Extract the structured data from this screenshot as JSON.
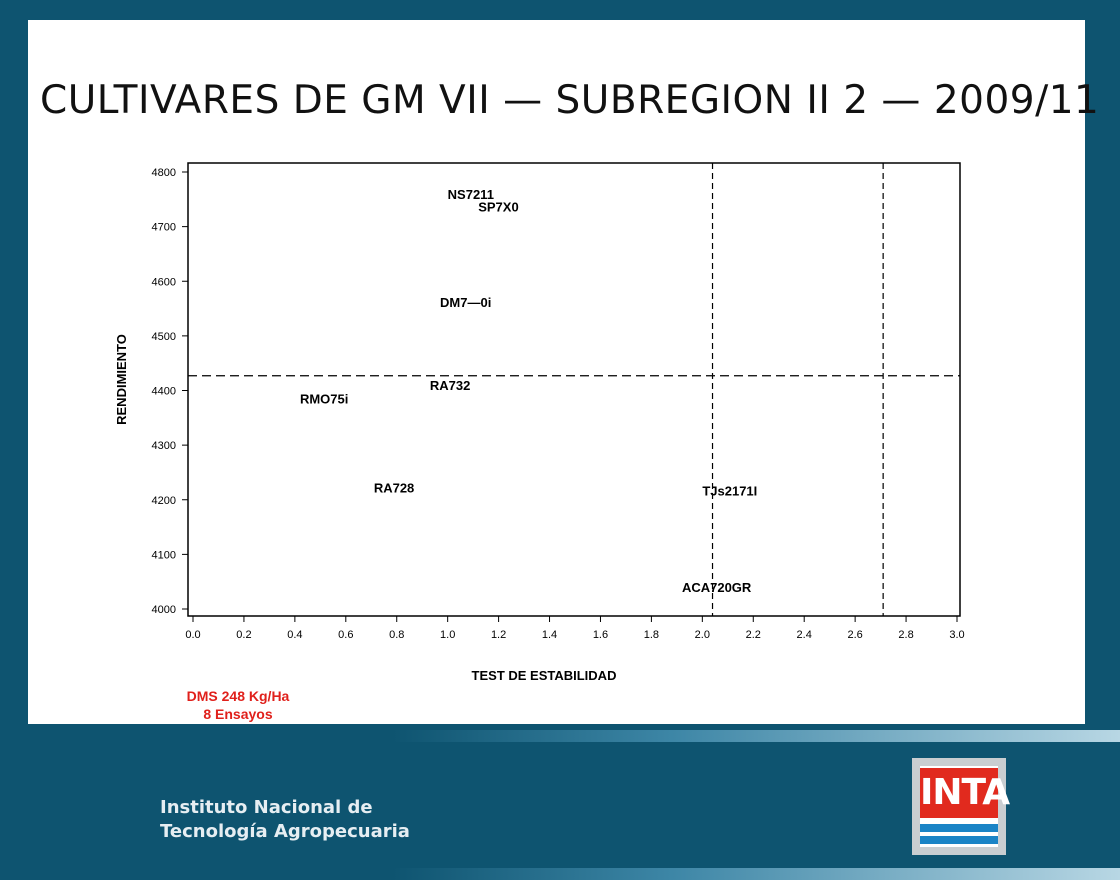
{
  "slide": {
    "title": "CULTIVARES DE GM VII — SUBREGION II 2 — 2009/11",
    "note_line1": "DMS 248 Kg/Ha",
    "note_line2": "8 Ensayos"
  },
  "footer": {
    "org_line1": "Instituto Nacional de",
    "org_line2": "Tecnología Agropecuaria",
    "logo_text": "INTA"
  },
  "colors": {
    "background": "#0e5470",
    "note": "#e0201b",
    "logo_red": "#e12a1e",
    "logo_blue": "#1a84c6"
  },
  "chart_data": {
    "type": "scatter",
    "xlabel": "TEST DE ESTABILIDAD",
    "ylabel": "RENDIMIENTO",
    "xlim": [
      0,
      3.0
    ],
    "ylim": [
      4000,
      4800
    ],
    "xticks": [
      "0.0",
      "0.2",
      "0.4",
      "0.6",
      "0.8",
      "1.0",
      "1.2",
      "1.4",
      "1.6",
      "1.8",
      "2.0",
      "2.2",
      "2.4",
      "2.6",
      "2.8",
      "3.0"
    ],
    "yticks": [
      "4000",
      "4100",
      "4200",
      "4300",
      "4400",
      "4500",
      "4600",
      "4700",
      "4800"
    ],
    "grid": false,
    "reference_lines": {
      "horizontal_y": 4427,
      "vertical_x": [
        2.04,
        2.71
      ]
    },
    "points": [
      {
        "label": "NS7211",
        "x": 1.0,
        "y": 4760
      },
      {
        "label": "SP7X0",
        "x": 1.12,
        "y": 4737
      },
      {
        "label": "DM7—0i",
        "x": 0.97,
        "y": 4562
      },
      {
        "label": "RA732",
        "x": 0.93,
        "y": 4410
      },
      {
        "label": "RMO75i",
        "x": 0.42,
        "y": 4385
      },
      {
        "label": "RA728",
        "x": 0.71,
        "y": 4222
      },
      {
        "label": "TJs2171I",
        "x": 2.0,
        "y": 4217
      },
      {
        "label": "ACA720GR",
        "x": 1.92,
        "y": 4040
      }
    ]
  }
}
